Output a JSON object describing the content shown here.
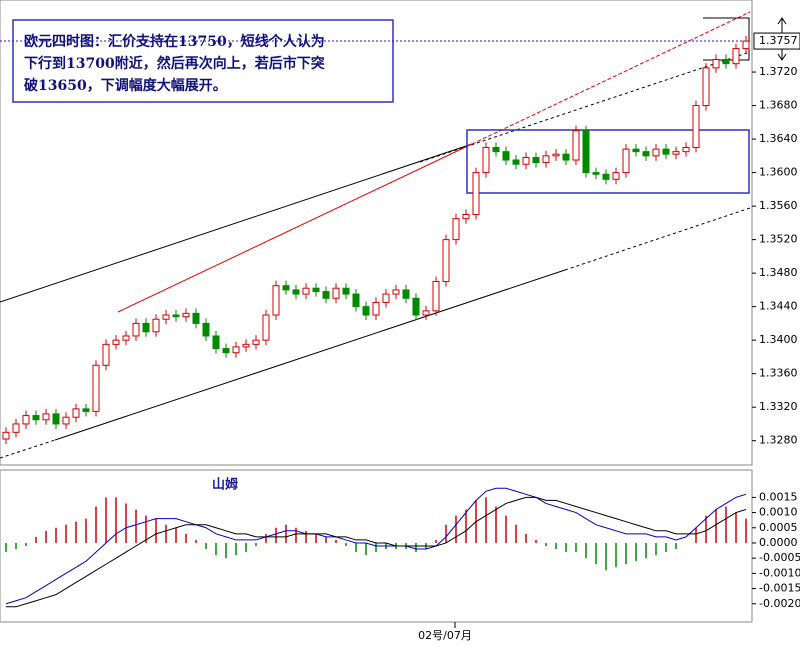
{
  "chart_data": {
    "type": "candlestick",
    "note": [
      "欧元四时图：汇价支持在13750，短线个人认为",
      "下行到13700附近，然后再次向上，若后市下突",
      "破13650，下调幅度大幅展开。"
    ],
    "indicator_label": "山姆",
    "x_label": "02号/07月",
    "last_price": 1.3757,
    "open": [
      1.3282,
      1.329,
      1.33,
      1.331,
      1.3305,
      1.3312,
      1.33,
      1.3308,
      1.3318,
      1.3315,
      1.337,
      1.3395,
      1.34,
      1.3405,
      1.342,
      1.341,
      1.3425,
      1.343,
      1.3428,
      1.3432,
      1.342,
      1.3405,
      1.339,
      1.3385,
      1.3392,
      1.3395,
      1.34,
      1.343,
      1.3465,
      1.346,
      1.3455,
      1.3462,
      1.3458,
      1.345,
      1.3462,
      1.3455,
      1.344,
      1.343,
      1.3445,
      1.3455,
      1.346,
      1.345,
      1.343,
      1.3435,
      1.347,
      1.352,
      1.3545,
      1.355,
      1.36,
      1.363,
      1.3625,
      1.3615,
      1.361,
      1.3618,
      1.3612,
      1.362,
      1.3622,
      1.3615,
      1.365,
      1.36,
      1.3598,
      1.3592,
      1.36,
      1.3628,
      1.3625,
      1.362,
      1.3628,
      1.3622,
      1.3625,
      1.363,
      1.368,
      1.3725,
      1.3735,
      1.373,
      1.3748
    ],
    "high": [
      1.3296,
      1.3306,
      1.3316,
      1.3316,
      1.3318,
      1.3318,
      1.3314,
      1.3324,
      1.3324,
      1.3376,
      1.3401,
      1.3406,
      1.3411,
      1.3426,
      1.3426,
      1.3431,
      1.3436,
      1.3436,
      1.3438,
      1.3438,
      1.3426,
      1.3411,
      1.3396,
      1.3398,
      1.3401,
      1.3406,
      1.3436,
      1.3471,
      1.3471,
      1.3466,
      1.3468,
      1.3468,
      1.3464,
      1.3468,
      1.3468,
      1.3461,
      1.3446,
      1.3451,
      1.3461,
      1.3466,
      1.3466,
      1.3456,
      1.3441,
      1.3476,
      1.3526,
      1.3551,
      1.3556,
      1.3606,
      1.3636,
      1.3636,
      1.3631,
      1.3621,
      1.3624,
      1.3624,
      1.3626,
      1.3628,
      1.3628,
      1.3656,
      1.3656,
      1.3606,
      1.3604,
      1.3606,
      1.3634,
      1.3634,
      1.3631,
      1.3634,
      1.3634,
      1.3631,
      1.3636,
      1.3686,
      1.3731,
      1.3741,
      1.3741,
      1.3754,
      1.3763
    ],
    "low": [
      1.3276,
      1.3284,
      1.3294,
      1.3299,
      1.3299,
      1.3294,
      1.3294,
      1.3302,
      1.3309,
      1.3309,
      1.3364,
      1.3389,
      1.3394,
      1.3399,
      1.3404,
      1.3404,
      1.3419,
      1.3422,
      1.3422,
      1.3414,
      1.3399,
      1.3384,
      1.3379,
      1.3379,
      1.3386,
      1.3389,
      1.3394,
      1.3424,
      1.3454,
      1.3449,
      1.3449,
      1.3452,
      1.3444,
      1.3444,
      1.3449,
      1.3434,
      1.3424,
      1.3424,
      1.3439,
      1.3449,
      1.3444,
      1.3424,
      1.3424,
      1.3429,
      1.3464,
      1.3514,
      1.3539,
      1.3544,
      1.3594,
      1.3619,
      1.3609,
      1.3604,
      1.3604,
      1.3606,
      1.3606,
      1.3614,
      1.3609,
      1.3609,
      1.3594,
      1.3592,
      1.3586,
      1.3586,
      1.3594,
      1.3619,
      1.3614,
      1.3614,
      1.3616,
      1.3616,
      1.3619,
      1.3624,
      1.3674,
      1.3719,
      1.3724,
      1.3724,
      1.3742
    ],
    "close": [
      1.329,
      1.33,
      1.331,
      1.3305,
      1.3312,
      1.33,
      1.3308,
      1.3318,
      1.3315,
      1.337,
      1.3395,
      1.34,
      1.3405,
      1.342,
      1.341,
      1.3425,
      1.343,
      1.3428,
      1.3432,
      1.342,
      1.3405,
      1.339,
      1.3385,
      1.3392,
      1.3395,
      1.34,
      1.343,
      1.3465,
      1.346,
      1.3455,
      1.3462,
      1.3458,
      1.345,
      1.3462,
      1.3455,
      1.344,
      1.343,
      1.3445,
      1.3455,
      1.346,
      1.345,
      1.343,
      1.3435,
      1.347,
      1.352,
      1.3545,
      1.355,
      1.36,
      1.363,
      1.3625,
      1.3615,
      1.361,
      1.3618,
      1.3612,
      1.362,
      1.3622,
      1.3615,
      1.365,
      1.36,
      1.3598,
      1.3592,
      1.36,
      1.3628,
      1.3625,
      1.362,
      1.3628,
      1.3622,
      1.3625,
      1.363,
      1.368,
      1.3725,
      1.3735,
      1.373,
      1.3748,
      1.3757
    ],
    "up_color": "#d40000",
    "down_color": "#008a00",
    "ylim": [
      1.3251,
      1.3806
    ],
    "yticks": [
      {
        "value": 1.328,
        "label": "1.3280"
      },
      {
        "value": 1.332,
        "label": "1.3320"
      },
      {
        "value": 1.336,
        "label": "1.3360"
      },
      {
        "value": 1.34,
        "label": "1.3400"
      },
      {
        "value": 1.344,
        "label": "1.3440"
      },
      {
        "value": 1.348,
        "label": "1.3480"
      },
      {
        "value": 1.352,
        "label": "1.3520"
      },
      {
        "value": 1.356,
        "label": "1.3560"
      },
      {
        "value": 1.36,
        "label": "1.3600"
      },
      {
        "value": 1.364,
        "label": "1.3640"
      },
      {
        "value": 1.368,
        "label": "1.3680"
      },
      {
        "value": 1.372,
        "label": "1.3720"
      }
    ],
    "macd": {
      "histogram": [
        -0.0003,
        -0.0002,
        -0.0001,
        0.0002,
        0.0004,
        0.0005,
        0.0006,
        0.0007,
        0.0008,
        0.0012,
        0.0015,
        0.0015,
        0.0013,
        0.0011,
        0.0009,
        0.0008,
        0.0006,
        0.0005,
        0.0003,
        0.0001,
        -0.0002,
        -0.0004,
        -0.0005,
        -0.0004,
        -0.0003,
        -0.0001,
        0.0003,
        0.0005,
        0.0006,
        0.0005,
        0.0004,
        0.0003,
        0.0002,
        0.0001,
        -0.0001,
        -0.0003,
        -0.0004,
        -0.0003,
        -0.0002,
        -0.0002,
        -0.0002,
        -0.0003,
        -0.0002,
        0.0001,
        0.0006,
        0.0009,
        0.0011,
        0.0014,
        0.0015,
        0.0012,
        0.0009,
        0.0006,
        0.0003,
        0.0001,
        -0.0001,
        -0.0002,
        -0.0003,
        -0.0003,
        -0.0005,
        -0.0007,
        -0.0009,
        -0.0008,
        -0.0007,
        -0.0006,
        -0.0005,
        -0.0004,
        -0.0003,
        -0.0002,
        0.0,
        0.0005,
        0.0009,
        0.0011,
        0.0012,
        0.001,
        0.0008
      ],
      "macd": [
        -0.002,
        -0.0019,
        -0.0018,
        -0.0016,
        -0.0014,
        -0.0012,
        -0.001,
        -0.0008,
        -0.0006,
        -0.0003,
        0.0,
        0.0003,
        0.0005,
        0.0006,
        0.0007,
        0.0008,
        0.0008,
        0.0008,
        0.0007,
        0.0006,
        0.0005,
        0.0003,
        0.0002,
        0.0001,
        0.0001,
        0.0001,
        0.0002,
        0.0003,
        0.0004,
        0.0004,
        0.0003,
        0.0003,
        0.0002,
        0.0002,
        0.0001,
        0.0,
        0.0,
        -0.0001,
        -0.0001,
        -0.0001,
        -0.0001,
        -0.0002,
        -0.0002,
        -0.0001,
        0.0002,
        0.0006,
        0.001,
        0.0014,
        0.0017,
        0.0018,
        0.0018,
        0.0017,
        0.0016,
        0.0015,
        0.0013,
        0.0012,
        0.0011,
        0.001,
        0.0008,
        0.0006,
        0.0005,
        0.0004,
        0.0003,
        0.0003,
        0.0003,
        0.0002,
        0.0002,
        0.0001,
        0.0002,
        0.0005,
        0.0008,
        0.0011,
        0.0013,
        0.0015,
        0.0016
      ],
      "signal": [
        -0.0021,
        -0.0021,
        -0.002,
        -0.0019,
        -0.0018,
        -0.0017,
        -0.0015,
        -0.0013,
        -0.0011,
        -0.0009,
        -0.0007,
        -0.0005,
        -0.0003,
        -0.0001,
        0.0001,
        0.0003,
        0.0004,
        0.0005,
        0.0006,
        0.0006,
        0.0006,
        0.0005,
        0.0004,
        0.0003,
        0.0003,
        0.0002,
        0.0002,
        0.0002,
        0.0002,
        0.0003,
        0.0003,
        0.0003,
        0.0003,
        0.0002,
        0.0002,
        0.0001,
        0.0001,
        0.0,
        0.0,
        -0.0001,
        -0.0001,
        -0.0001,
        -0.0001,
        -0.0001,
        0.0,
        0.0002,
        0.0004,
        0.0007,
        0.0009,
        0.0011,
        0.0013,
        0.0014,
        0.0015,
        0.0015,
        0.0014,
        0.0014,
        0.0013,
        0.0012,
        0.0011,
        0.001,
        0.0009,
        0.0008,
        0.0007,
        0.0006,
        0.0005,
        0.0004,
        0.0004,
        0.0003,
        0.0003,
        0.0003,
        0.0004,
        0.0006,
        0.0008,
        0.001,
        0.0011
      ],
      "macd_color": "#0000cc",
      "signal_color": "#000000",
      "ylim": [
        -0.0026,
        0.0024
      ],
      "yticks": [
        {
          "value": 0.0015,
          "label": "0.0015"
        },
        {
          "value": 0.001,
          "label": "0.0010"
        },
        {
          "value": 0.0005,
          "label": "0.0005"
        },
        {
          "value": 0,
          "label": "0.0000"
        },
        {
          "value": -0.0005,
          "label": "-0.0005"
        },
        {
          "value": -0.001,
          "label": "-0.0010"
        },
        {
          "value": -0.0015,
          "label": "-0.0015"
        },
        {
          "value": -0.002,
          "label": "-0.0020"
        }
      ]
    }
  }
}
